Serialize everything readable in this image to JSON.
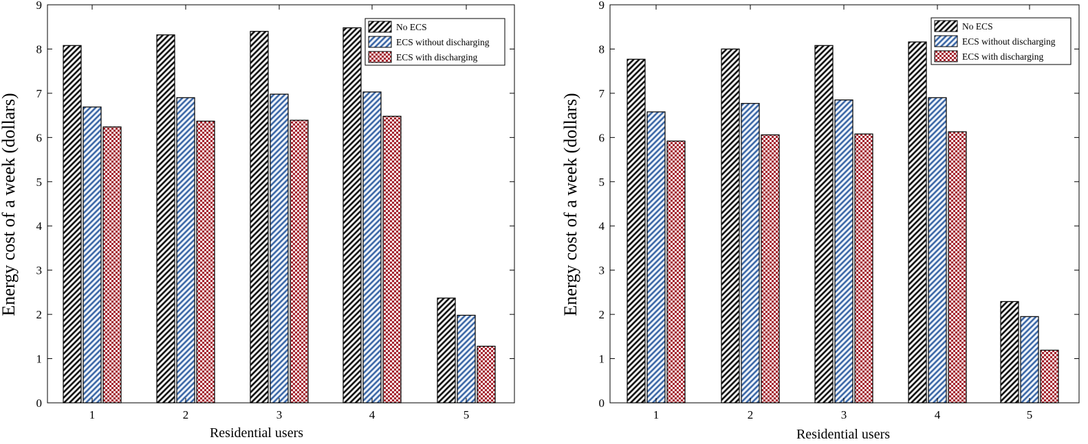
{
  "chart_data": [
    {
      "type": "bar",
      "panel": "left",
      "categories": [
        "1",
        "2",
        "3",
        "4",
        "5"
      ],
      "series": [
        {
          "name": "No ECS",
          "pattern": "stripe-black",
          "values": [
            8.08,
            8.32,
            8.4,
            8.48,
            2.37
          ]
        },
        {
          "name": "ECS without discharging",
          "pattern": "stripe-blue",
          "values": [
            6.69,
            6.9,
            6.98,
            7.03,
            1.98
          ]
        },
        {
          "name": "ECS with discharging",
          "pattern": "check-red",
          "values": [
            6.24,
            6.37,
            6.39,
            6.48,
            1.28
          ]
        }
      ],
      "xlabel": "Residential users",
      "ylabel": "Energy cost of a week (dollars)",
      "ylim": [
        0,
        9
      ],
      "yticks": [
        "0",
        "1",
        "2",
        "3",
        "4",
        "5",
        "6",
        "7",
        "8",
        "9"
      ],
      "legend_position": "top-right",
      "grid": false
    },
    {
      "type": "bar",
      "panel": "right",
      "categories": [
        "1",
        "2",
        "3",
        "4",
        "5"
      ],
      "series": [
        {
          "name": "No ECS",
          "pattern": "stripe-black",
          "values": [
            7.77,
            8.0,
            8.08,
            8.16,
            2.29
          ]
        },
        {
          "name": "ECS without discharging",
          "pattern": "stripe-blue",
          "values": [
            6.58,
            6.77,
            6.85,
            6.9,
            1.95
          ]
        },
        {
          "name": "ECS with discharging",
          "pattern": "check-red",
          "values": [
            5.92,
            6.06,
            6.08,
            6.13,
            1.19
          ]
        }
      ],
      "xlabel": "Residential users",
      "ylabel": "Energy cost of a week (dollars)",
      "ylim": [
        0,
        9
      ],
      "yticks": [
        "0",
        "1",
        "2",
        "3",
        "4",
        "5",
        "6",
        "7",
        "8",
        "9"
      ],
      "legend_position": "top-right",
      "grid": false
    }
  ],
  "colors": {
    "stripe_black_fg": "#111111",
    "stripe_black_bg": "#f2f2f2",
    "stripe_blue_fg": "#3f6aa8",
    "stripe_blue_bg": "#eef3fa",
    "check_red_fg": "#a4232e",
    "check_red_bg": "#f6e9e9"
  }
}
